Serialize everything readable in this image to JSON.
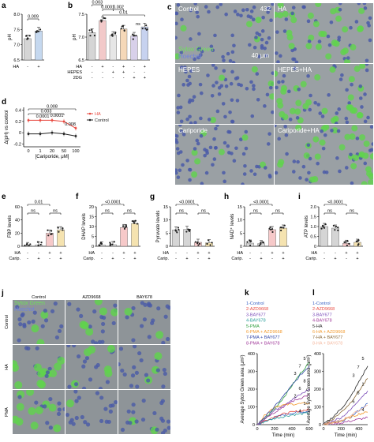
{
  "panels": {
    "a": {
      "letter": "a",
      "ylabel": "pH",
      "yticks": [
        "6.5",
        "7.0",
        "7.5",
        "8.0"
      ],
      "ylim": [
        6.5,
        8.0
      ],
      "categories": [
        "-",
        "+"
      ],
      "row_label": "HA",
      "pvalue": "0.009",
      "values": [
        7.2,
        7.45
      ],
      "bar_colors": [
        "#d5d5d5",
        "#c5d8ef"
      ]
    },
    "b": {
      "letter": "b",
      "ylabel": "pH",
      "yticks": [
        "6.5",
        "7.0",
        "7.5"
      ],
      "ylim": [
        6.5,
        7.8
      ],
      "rows": [
        {
          "label": "HA",
          "marks": [
            "-",
            "+",
            "-",
            "+",
            "-",
            "+"
          ]
        },
        {
          "label": "HEPES",
          "marks": [
            "-",
            "-",
            "+",
            "+",
            "-",
            "-"
          ]
        },
        {
          "label": "2DG",
          "marks": [
            "-",
            "-",
            "-",
            "-",
            "+",
            "+"
          ]
        }
      ],
      "pvalues": [
        "0.003",
        "0.0001",
        "0.002",
        "0.01",
        "ns"
      ],
      "values": [
        7.28,
        7.62,
        7.2,
        7.38,
        7.18,
        7.44
      ],
      "bar_colors": [
        "#d5d5d5",
        "#f2c9c9",
        "#e6e6e6",
        "#f5d8b8",
        "#d8d0ea",
        "#c7d2ef"
      ]
    },
    "c": {
      "letter": "c",
      "images": [
        {
          "label": "Control",
          "extra": "432",
          "label2": "Sytox Green",
          "label3": "Hoechst",
          "scale": "40 μm"
        },
        {
          "label": "HA"
        },
        {
          "label": "HEPES"
        },
        {
          "label": "HEPES+HA"
        },
        {
          "label": "Cariporide"
        },
        {
          "label": "Cariporide+HA"
        }
      ]
    },
    "d": {
      "letter": "d",
      "ylabel": "Δ(pH) vs control",
      "xlabel": "[Cariporide, μM]",
      "xticks": [
        "0",
        "1",
        "20",
        "50",
        "100"
      ],
      "yticks": [
        "-0.2",
        "0",
        "0.2",
        "0.4"
      ],
      "ylim": [
        -0.25,
        0.45
      ],
      "legend": [
        {
          "name": "HA",
          "color": "#e8483f"
        },
        {
          "name": "Control",
          "color": "#222222"
        }
      ],
      "series": [
        {
          "name": "HA",
          "values": [
            0.22,
            0.22,
            0.22,
            0.2,
            0.08
          ]
        },
        {
          "name": "Control",
          "values": [
            -0.02,
            -0.02,
            0.0,
            -0.02,
            -0.06
          ]
        }
      ],
      "pvalues": [
        "0.008",
        "0.003",
        "0.0001",
        "0.0001",
        "0.008"
      ]
    },
    "e": {
      "letter": "e",
      "ylabel": "FBP levels",
      "yticks": [
        "0",
        "20",
        "40",
        "60"
      ],
      "ylim": [
        0,
        60
      ],
      "values": [
        1,
        2,
        20,
        25
      ],
      "pvalues": [
        "0.01",
        "ns",
        "ns"
      ]
    },
    "f": {
      "letter": "f",
      "ylabel": "DHAP levels",
      "yticks": [
        "0",
        "5",
        "10",
        "15",
        "20"
      ],
      "ylim": [
        0,
        20
      ],
      "values": [
        0.6,
        0.8,
        9.5,
        11.5
      ],
      "pvalues": [
        "<0.0001",
        "ns",
        "ns"
      ]
    },
    "g": {
      "letter": "g",
      "ylabel": "Pyruvate levels",
      "yticks": [
        "0",
        "5",
        "10",
        "15"
      ],
      "ylim": [
        0,
        15
      ],
      "values": [
        6.2,
        6.4,
        1.5,
        1.3
      ],
      "pvalues": [
        "<0.0001",
        "ns",
        "ns"
      ]
    },
    "h": {
      "letter": "h",
      "ylabel": "NAD⁺ levels",
      "yticks": [
        "0",
        "5",
        "10",
        "15"
      ],
      "ylim": [
        0,
        15
      ],
      "values": [
        1.2,
        1.0,
        6.3,
        6.9
      ],
      "pvalues": [
        "<0.0001",
        "ns",
        "ns"
      ]
    },
    "i": {
      "letter": "i",
      "ylabel": "ATP levels",
      "yticks": [
        "0",
        "0.5",
        "1.0",
        "1.5",
        "2.0"
      ],
      "ylim": [
        0,
        2
      ],
      "values": [
        1.0,
        0.92,
        0.15,
        0.2
      ],
      "pvalues": [
        "<0.0001",
        "ns",
        "ns"
      ]
    },
    "j": {
      "letter": "j",
      "cols": [
        "Control",
        "AZD9668",
        "BAY678"
      ],
      "rows": [
        "Control",
        "HA",
        "PMA"
      ],
      "label2": "Sytox Green",
      "label3": "Hoechst"
    },
    "k": {
      "letter": "k",
      "ylabel": "Average Sytox Green area (μm²)",
      "xlabel": "Time (min)",
      "xticks": [
        "0",
        "200",
        "400",
        "600"
      ],
      "yticks": [
        "0",
        "100",
        "200",
        "300",
        "400"
      ],
      "legend": [
        {
          "name": "1-Control",
          "color": "#3a62c4"
        },
        {
          "name": "2-AZD9668",
          "color": "#e8483f"
        },
        {
          "name": "3-BAY677",
          "color": "#7a4bb8"
        },
        {
          "name": "4-BAY678",
          "color": "#2a9d9a"
        },
        {
          "name": "5-PMA",
          "color": "#2e9e3e"
        },
        {
          "name": "6-PMA + AZD9668",
          "color": "#f29a2e"
        },
        {
          "name": "7-PMA + BAY677",
          "color": "#3348a8"
        },
        {
          "name": "8-PMA + BAY678",
          "color": "#a03a9a"
        }
      ],
      "end_labels": [
        "5",
        "7",
        "3",
        "8",
        "6",
        "2",
        "1",
        "4"
      ]
    },
    "l": {
      "letter": "l",
      "ylabel": "Average Sytox Green area (μm²)",
      "xlabel": "Time (min)",
      "xticks": [
        "0",
        "200",
        "400"
      ],
      "yticks": [
        "0",
        "100",
        "200",
        "300",
        "400"
      ],
      "legend": [
        {
          "name": "1-Control",
          "color": "#3a62c4"
        },
        {
          "name": "2-AZD9668",
          "color": "#e8483f"
        },
        {
          "name": "3-BAY677",
          "color": "#7a4bb8"
        },
        {
          "name": "4-BAY678",
          "color": "#a03a9a"
        },
        {
          "name": "5-HA",
          "color": "#222222"
        },
        {
          "name": "6-HA + AZD9668",
          "color": "#f29a2e"
        },
        {
          "name": "7-HA + BAY677",
          "color": "#8a6a3a"
        },
        {
          "name": "8-HA + BAY678",
          "color": "#f5b9a0"
        }
      ],
      "end_labels": [
        "5",
        "7",
        "3",
        "1",
        "8",
        "6",
        "4"
      ]
    },
    "bottom_rows": [
      {
        "label": "HA",
        "marks": [
          "-",
          "-",
          "+",
          "+"
        ]
      },
      {
        "label": "Carip.",
        "marks": [
          "-",
          "+",
          "-",
          "+"
        ]
      }
    ],
    "bottom_bar_colors": [
      "#d5d5d5",
      "#d5d5d5",
      "#f6c9c9",
      "#f5e3b0"
    ]
  },
  "chart_data": [
    {
      "panel": "a",
      "type": "bar",
      "categories": [
        "HA -",
        "HA +"
      ],
      "values": [
        7.2,
        7.45
      ],
      "ylabel": "pH",
      "ylim": [
        6.5,
        8.0
      ]
    },
    {
      "panel": "b",
      "type": "bar",
      "categories": [
        "1",
        "2",
        "3",
        "4",
        "5",
        "6"
      ],
      "values": [
        7.28,
        7.62,
        7.2,
        7.38,
        7.18,
        7.44
      ],
      "ylabel": "pH"
    },
    {
      "panel": "d",
      "type": "line",
      "x": [
        0,
        1,
        20,
        50,
        100
      ],
      "series": [
        {
          "name": "HA",
          "values": [
            0.22,
            0.22,
            0.22,
            0.2,
            0.08
          ]
        },
        {
          "name": "Control",
          "values": [
            -0.02,
            -0.02,
            0.0,
            -0.02,
            -0.06
          ]
        }
      ],
      "ylabel": "Δ(pH) vs control",
      "xlabel": "[Cariporide, μM]"
    },
    {
      "panel": "e",
      "type": "bar",
      "values": [
        1,
        2,
        20,
        25
      ],
      "ylabel": "FBP levels"
    },
    {
      "panel": "f",
      "type": "bar",
      "values": [
        0.6,
        0.8,
        9.5,
        11.5
      ],
      "ylabel": "DHAP levels"
    },
    {
      "panel": "g",
      "type": "bar",
      "values": [
        6.2,
        6.4,
        1.5,
        1.3
      ],
      "ylabel": "Pyruvate levels"
    },
    {
      "panel": "h",
      "type": "bar",
      "values": [
        1.2,
        1.0,
        6.3,
        6.9
      ],
      "ylabel": "NAD⁺ levels"
    },
    {
      "panel": "i",
      "type": "bar",
      "values": [
        1.0,
        0.92,
        0.15,
        0.2
      ],
      "ylabel": "ATP levels"
    },
    {
      "panel": "k",
      "type": "line",
      "x": [
        0,
        100,
        200,
        300,
        400,
        500,
        600
      ],
      "series": [
        {
          "name": "1-Control",
          "values": [
            0,
            20,
            40,
            55,
            65,
            70,
            75
          ]
        },
        {
          "name": "2-AZD9668",
          "values": [
            0,
            25,
            45,
            60,
            70,
            78,
            85
          ]
        },
        {
          "name": "3-BAY677",
          "values": [
            0,
            40,
            80,
            110,
            140,
            170,
            200
          ]
        },
        {
          "name": "4-BAY678",
          "values": [
            0,
            20,
            35,
            45,
            55,
            60,
            65
          ]
        },
        {
          "name": "5-PMA",
          "values": [
            0,
            40,
            90,
            150,
            220,
            290,
            350
          ]
        },
        {
          "name": "6-PMA + AZD9668",
          "values": [
            0,
            60,
            100,
            110,
            115,
            118,
            120
          ]
        },
        {
          "name": "7-PMA + BAY677",
          "values": [
            0,
            50,
            100,
            160,
            220,
            280,
            330
          ]
        },
        {
          "name": "8-PMA + BAY678",
          "values": [
            0,
            40,
            70,
            100,
            130,
            150,
            170
          ]
        }
      ]
    },
    {
      "panel": "l",
      "type": "line",
      "x": [
        0,
        100,
        200,
        300,
        400,
        500
      ],
      "series": [
        {
          "name": "1-Control",
          "values": [
            0,
            10,
            20,
            40,
            80,
            120
          ]
        },
        {
          "name": "3-BAY677",
          "values": [
            0,
            20,
            40,
            80,
            140,
            190
          ]
        },
        {
          "name": "4-BAY678",
          "values": [
            0,
            5,
            10,
            20,
            30,
            40
          ]
        },
        {
          "name": "5-HA",
          "values": [
            0,
            40,
            90,
            150,
            240,
            330
          ]
        },
        {
          "name": "6-HA + AZD9668",
          "values": [
            0,
            10,
            20,
            40,
            60,
            70
          ]
        },
        {
          "name": "7-HA + BAY677",
          "values": [
            0,
            30,
            70,
            120,
            190,
            260
          ]
        },
        {
          "name": "8-HA + BAY678",
          "values": [
            0,
            10,
            25,
            50,
            80,
            110
          ]
        }
      ]
    }
  ]
}
